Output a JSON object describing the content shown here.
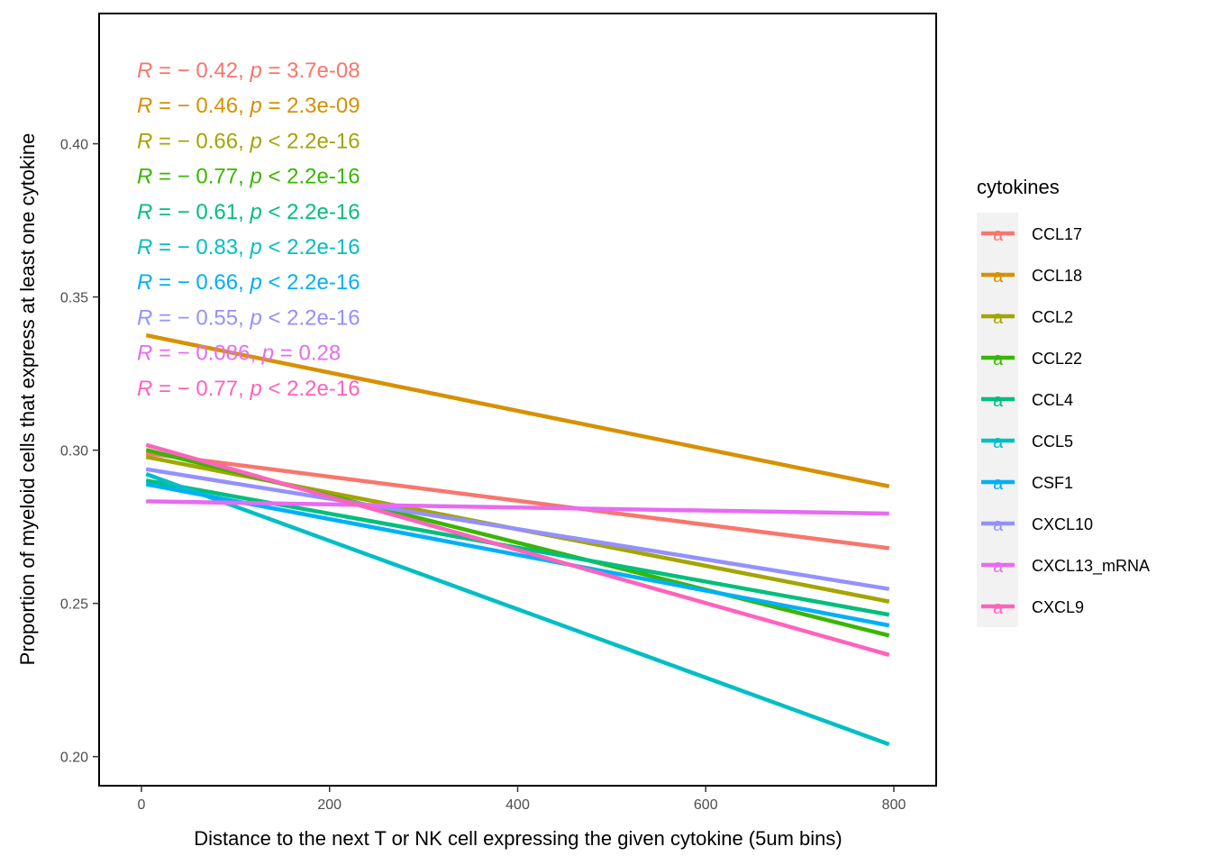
{
  "chart_data": {
    "type": "line",
    "xlabel": "Distance to the next T or NK cell expressing the given cytokine (5um bins)",
    "ylabel": "Proportion of myeloid cells that express at least one cytokine",
    "xlim": [
      -45,
      845
    ],
    "ylim": [
      0.1905,
      0.4425
    ],
    "xticks": [
      0,
      200,
      400,
      600,
      800
    ],
    "xtick_labels": [
      "0",
      "200",
      "400",
      "600",
      "800"
    ],
    "yticks": [
      0.2,
      0.25,
      0.3,
      0.35,
      0.4
    ],
    "ytick_labels": [
      "0.20",
      "0.25",
      "0.30",
      "0.35",
      "0.40"
    ],
    "grid": false,
    "legend": {
      "title": "cytokines",
      "placement": "right"
    },
    "series": [
      {
        "name": "CCL17",
        "color": "#F8766D",
        "x": [
          5,
          795
        ],
        "y": [
          0.299,
          0.268
        ],
        "annotation": {
          "R": "− 0.42",
          "sep": "=",
          "p": "3.7e-08"
        }
      },
      {
        "name": "CCL18",
        "color": "#D89000",
        "x": [
          5,
          795
        ],
        "y": [
          0.3375,
          0.2882
        ],
        "annotation": {
          "R": "− 0.46",
          "sep": "=",
          "p": "2.3e-09"
        }
      },
      {
        "name": "CCL2",
        "color": "#A3A500",
        "x": [
          5,
          795
        ],
        "y": [
          0.2978,
          0.2506
        ],
        "annotation": {
          "R": "− 0.66",
          "sep": "<",
          "p": "2.2e-16"
        }
      },
      {
        "name": "CCL22",
        "color": "#39B600",
        "x": [
          5,
          795
        ],
        "y": [
          0.3001,
          0.2395
        ],
        "annotation": {
          "R": "− 0.77",
          "sep": "<",
          "p": "2.2e-16"
        }
      },
      {
        "name": "CCL4",
        "color": "#00BF7D",
        "x": [
          5,
          795
        ],
        "y": [
          0.2901,
          0.2463
        ],
        "annotation": {
          "R": "− 0.61",
          "sep": "<",
          "p": "2.2e-16"
        }
      },
      {
        "name": "CCL5",
        "color": "#00BFC4",
        "x": [
          5,
          795
        ],
        "y": [
          0.2922,
          0.204
        ],
        "annotation": {
          "R": "− 0.83",
          "sep": "<",
          "p": "2.2e-16"
        }
      },
      {
        "name": "CSF1",
        "color": "#00B0F6",
        "x": [
          5,
          795
        ],
        "y": [
          0.2889,
          0.2428
        ],
        "annotation": {
          "R": "− 0.66",
          "sep": "<",
          "p": "2.2e-16"
        }
      },
      {
        "name": "CXCL10",
        "color": "#9590FF",
        "x": [
          5,
          795
        ],
        "y": [
          0.2938,
          0.2547
        ],
        "annotation": {
          "R": "− 0.55",
          "sep": "<",
          "p": "2.2e-16"
        }
      },
      {
        "name": "CXCL13_mRNA",
        "color": "#E76BF3",
        "x": [
          5,
          795
        ],
        "y": [
          0.2833,
          0.2793
        ],
        "annotation": {
          "R": "− 0.086",
          "sep": "=",
          "p": "0.28"
        }
      },
      {
        "name": "CXCL9",
        "color": "#FF62BC",
        "x": [
          5,
          795
        ],
        "y": [
          0.3017,
          0.2332
        ],
        "annotation": {
          "R": "− 0.77",
          "sep": "<",
          "p": "2.2e-16"
        }
      }
    ]
  }
}
